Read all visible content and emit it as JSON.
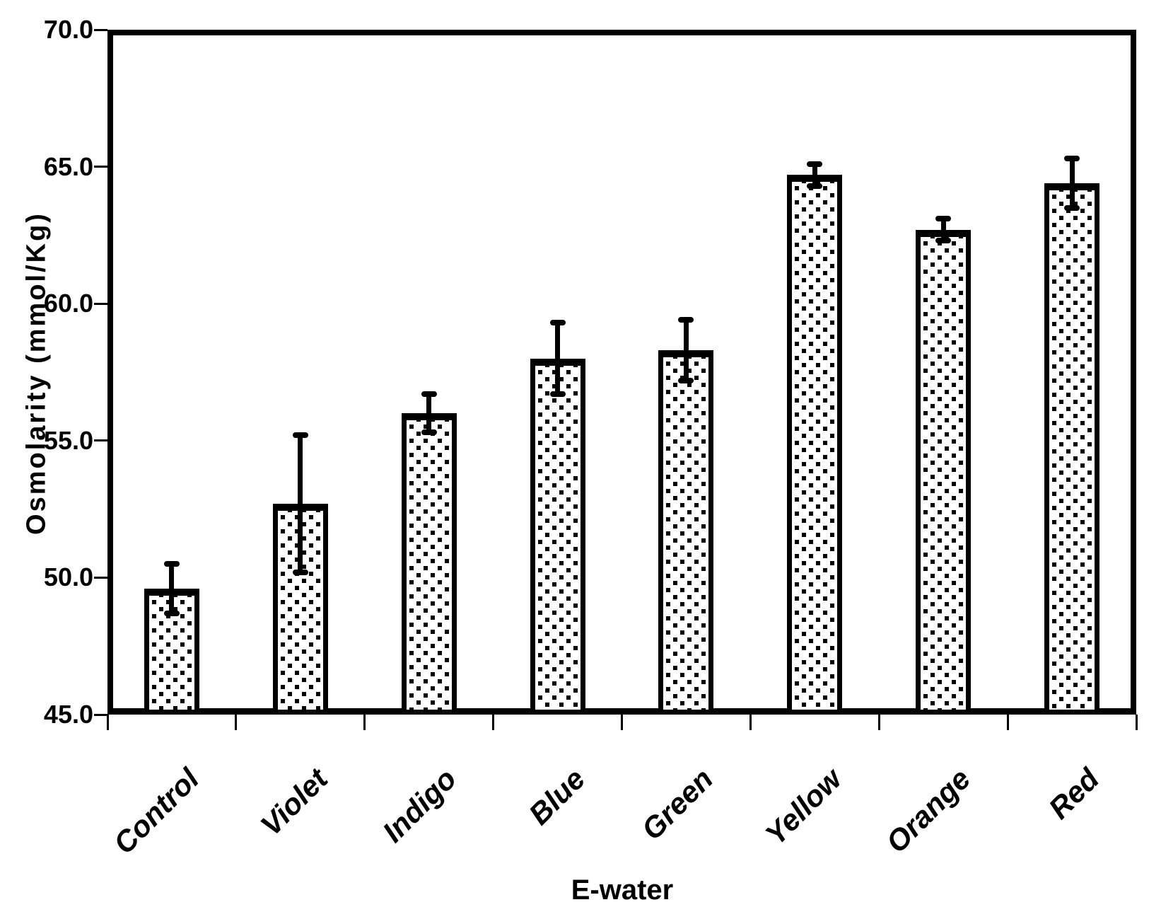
{
  "chart_data": {
    "type": "bar",
    "title": "",
    "xlabel": "E-water",
    "ylabel": "Osmolarity (mmol/Kg)",
    "categories": [
      "Control",
      "Violet",
      "Indigo",
      "Blue",
      "Green",
      "Yellow",
      "Orange",
      "Red"
    ],
    "values": [
      49.6,
      52.7,
      56.0,
      58.0,
      58.3,
      64.7,
      62.7,
      64.4
    ],
    "error_bars": [
      0.9,
      2.5,
      0.7,
      1.3,
      1.1,
      0.4,
      0.4,
      0.9
    ],
    "ylim": [
      45.0,
      70.0
    ],
    "ytick_step": 5,
    "ytick_labels": [
      "45.0",
      "50.0",
      "55.0",
      "60.0",
      "65.0",
      "70.0"
    ],
    "grid": false,
    "legend": false,
    "bar_fill": "white-with-black-square-dot-pattern",
    "bar_border_color": "#000000",
    "background_color": "#ffffff"
  }
}
